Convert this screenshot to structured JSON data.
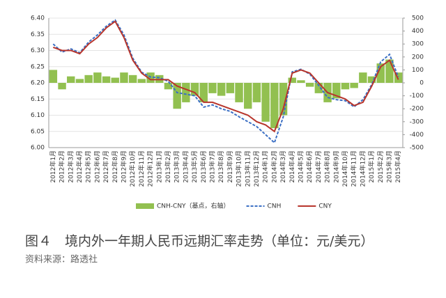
{
  "chart_data": {
    "type": "combo",
    "categories": [
      "2012年1月",
      "2012年2月",
      "2012年3月",
      "2012年4月",
      "2012年5月",
      "2012年6月",
      "2012年7月",
      "2012年8月",
      "2012年9月",
      "2012年10月",
      "2012年11月",
      "2012年12月",
      "2013年1月",
      "2013年2月",
      "2013年3月",
      "2013年4月",
      "2013年5月",
      "2013年6月",
      "2013年7月",
      "2013年8月",
      "2013年9月",
      "2013年10月",
      "2013年11月",
      "2013年12月",
      "2014年1月",
      "2014年2月",
      "2014年3月",
      "2014年4月",
      "2014年5月",
      "2014年6月",
      "2014年7月",
      "2014年8月",
      "2014年9月",
      "2014年10月",
      "2014年11月",
      "2014年12月",
      "2015年1月",
      "2015年2月",
      "2015年3月",
      "2015年4月"
    ],
    "series": [
      {
        "name": "CNH-CNY（基点，右轴）",
        "type": "bar",
        "axis": "y2",
        "color": "#92c050",
        "values": [
          100,
          -50,
          50,
          30,
          60,
          80,
          50,
          40,
          80,
          60,
          30,
          80,
          60,
          -50,
          -200,
          -150,
          -100,
          -150,
          -80,
          -100,
          -80,
          -150,
          -200,
          -150,
          -300,
          -350,
          -250,
          40,
          20,
          -30,
          -80,
          -150,
          -120,
          -50,
          -40,
          80,
          50,
          150,
          180,
          80
        ]
      },
      {
        "name": "CNH",
        "type": "line",
        "dash": true,
        "color": "#3b6fc4",
        "values": [
          6.32,
          6.295,
          6.305,
          6.293,
          6.326,
          6.348,
          6.375,
          6.394,
          6.348,
          6.276,
          6.233,
          6.218,
          6.216,
          6.205,
          6.17,
          6.165,
          6.16,
          6.125,
          6.132,
          6.12,
          6.112,
          6.095,
          6.08,
          6.065,
          6.04,
          6.015,
          6.095,
          6.234,
          6.242,
          6.227,
          6.192,
          6.155,
          6.148,
          6.145,
          6.126,
          6.148,
          6.195,
          6.265,
          6.288,
          6.218
        ]
      },
      {
        "name": "CNY",
        "type": "line",
        "dash": false,
        "color": "#b8352c",
        "values": [
          6.31,
          6.3,
          6.3,
          6.29,
          6.32,
          6.34,
          6.37,
          6.39,
          6.34,
          6.27,
          6.23,
          6.21,
          6.21,
          6.21,
          6.19,
          6.18,
          6.17,
          6.14,
          6.14,
          6.13,
          6.12,
          6.11,
          6.1,
          6.08,
          6.07,
          6.05,
          6.12,
          6.23,
          6.24,
          6.23,
          6.2,
          6.17,
          6.16,
          6.15,
          6.13,
          6.14,
          6.19,
          6.25,
          6.27,
          6.21
        ]
      }
    ],
    "ylim": [
      6.0,
      6.4
    ],
    "yticks": [
      {
        "value": 6,
        "label": "6.00"
      },
      6.05,
      {
        "value": 6.1,
        "label": "6.10"
      },
      6.15,
      {
        "value": 6.2,
        "label": "6.20"
      },
      6.25,
      {
        "value": 6.3,
        "label": "6.30"
      },
      6.35,
      {
        "value": 6.4,
        "label": "6.40"
      }
    ],
    "y2lim": [
      -500,
      500
    ],
    "y2ticks": [
      -500,
      -400,
      -300,
      -200,
      -100,
      0,
      100,
      200,
      300,
      400,
      500
    ],
    "grid": true,
    "caption": "图４　境内外一年期人民币远期汇率走势（单位：元/美元）",
    "source": "资料来源：路透社"
  }
}
